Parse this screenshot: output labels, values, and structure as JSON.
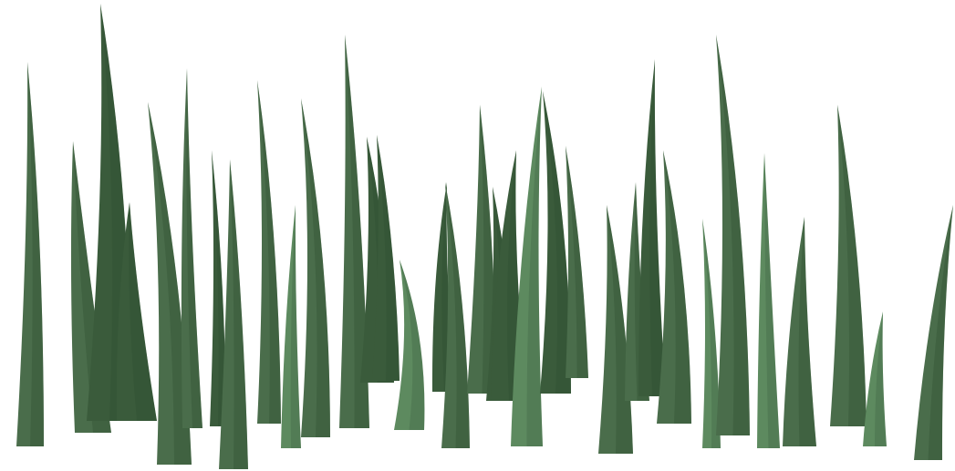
{
  "scene": {
    "subject": "grass-blades",
    "background_color": "#ffffff",
    "palette": {
      "dark": "#3a5b3b",
      "mid": "#4a6d4b",
      "light": "#5d8a5f",
      "shade": "#2f4c30"
    }
  }
}
